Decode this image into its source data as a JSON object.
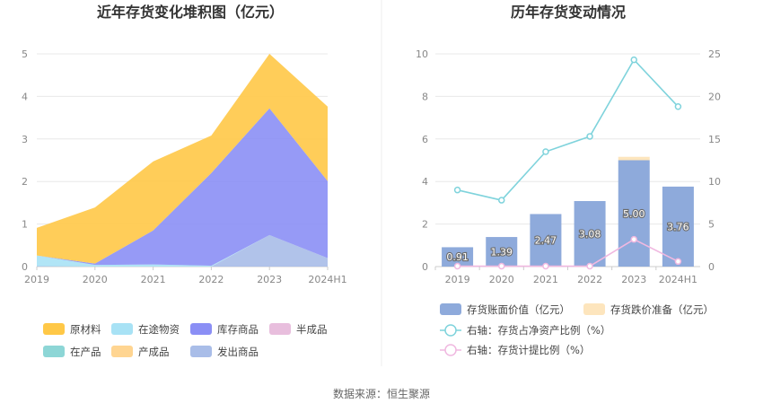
{
  "left_chart": {
    "title": "近年存货变化堆积图（亿元）",
    "chart_data": {
      "type": "area",
      "stacked": true,
      "categories": [
        "2019",
        "2020",
        "2021",
        "2022",
        "2023",
        "2024H1"
      ],
      "ylim": [
        0,
        5
      ],
      "yticks": [
        0,
        1,
        2,
        3,
        4,
        5
      ],
      "series": [
        {
          "name": "原材料",
          "color": "#ffc847",
          "values": [
            0.65,
            1.32,
            1.62,
            0.88,
            1.28,
            1.75
          ]
        },
        {
          "name": "在途物资",
          "color": "#a8e2f5",
          "values": [
            0.25,
            0.04,
            0.05,
            0.02,
            0,
            0
          ]
        },
        {
          "name": "库存商品",
          "color": "#8b8ff5",
          "values": [
            0,
            0.03,
            0.8,
            2.18,
            2.98,
            1.81
          ]
        },
        {
          "name": "半成品",
          "color": "#e8bedd",
          "values": [
            0,
            0,
            0,
            0,
            0,
            0
          ]
        },
        {
          "name": "在产品",
          "color": "#8dd6d6",
          "values": [
            0,
            0,
            0,
            0,
            0,
            0
          ]
        },
        {
          "name": "产成品",
          "color": "#ffd591",
          "values": [
            0,
            0,
            0,
            0,
            0,
            0
          ]
        },
        {
          "name": "发出商品",
          "color": "#a9bde8",
          "values": [
            0.01,
            0,
            0,
            0,
            0.74,
            0.2
          ]
        }
      ]
    }
  },
  "right_chart": {
    "title": "历年存货变动情况",
    "chart_data": {
      "type": "bar",
      "categories": [
        "2019",
        "2020",
        "2021",
        "2022",
        "2023",
        "2024H1"
      ],
      "ylim": [
        0,
        10
      ],
      "yticks": [
        0,
        2,
        4,
        6,
        8,
        10
      ],
      "y2lim": [
        0,
        25
      ],
      "y2ticks": [
        0,
        5,
        10,
        15,
        20,
        25
      ],
      "series": [
        {
          "name": "存货账面价值（亿元）",
          "type": "bar",
          "color": "#8eaadb",
          "axis": "left",
          "values": [
            0.91,
            1.39,
            2.47,
            3.08,
            5.0,
            3.76
          ],
          "labels": [
            "0.91",
            "1.39",
            "2.47",
            "3.08",
            "5.00",
            "3.76"
          ]
        },
        {
          "name": "存货跌价准备（亿元）",
          "type": "bar",
          "color": "#fde5bd",
          "axis": "left",
          "values": [
            0,
            0,
            0,
            0,
            0.16,
            0
          ]
        },
        {
          "name": "右轴：存货占净资产比例（%）",
          "type": "line",
          "color": "#7fd3dc",
          "axis": "right",
          "values": [
            9.0,
            7.8,
            13.5,
            15.3,
            24.3,
            18.8
          ]
        },
        {
          "name": "右轴：存货计提比例（%）",
          "type": "line",
          "color": "#f0b8e0",
          "axis": "right",
          "values": [
            0.05,
            0.05,
            0.05,
            0.05,
            3.2,
            0.6
          ]
        }
      ]
    }
  },
  "footer": {
    "source": "数据来源：恒生聚源"
  }
}
